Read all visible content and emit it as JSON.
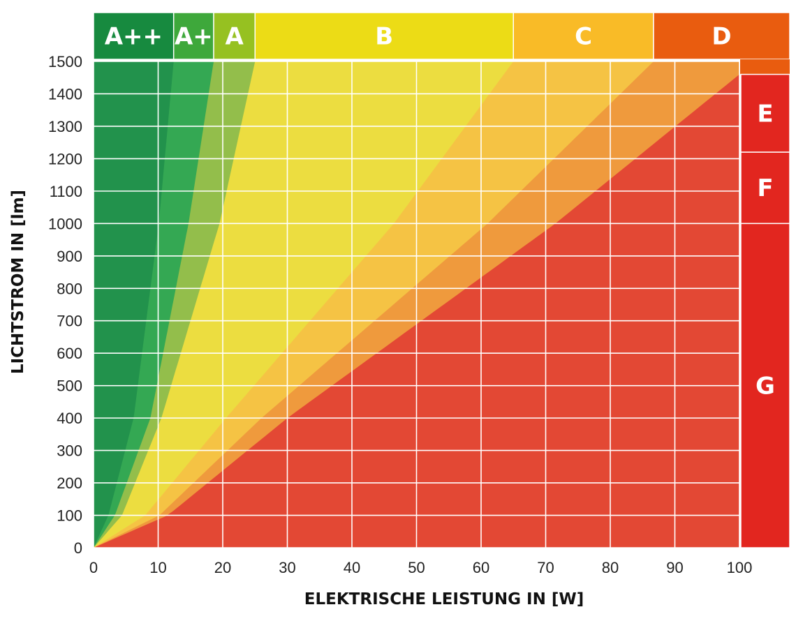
{
  "chart_data": {
    "type": "area",
    "xlabel": "ELEKTRISCHE LEISTUNG IN [W]",
    "ylabel": "LICHTSTROM IN [lm]",
    "xlim": [
      0,
      100
    ],
    "ylim": [
      0,
      1500
    ],
    "x_ticks": [
      "0",
      "10",
      "20",
      "30",
      "40",
      "50",
      "60",
      "70",
      "80",
      "90",
      "100"
    ],
    "y_ticks": [
      "0",
      "100",
      "200",
      "300",
      "400",
      "500",
      "600",
      "700",
      "800",
      "900",
      "1000",
      "1100",
      "1200",
      "1300",
      "1400",
      "1500"
    ],
    "grid": true,
    "top_bands": [
      {
        "label": "A++",
        "x_start": 0,
        "x_end": 12.4,
        "color": "#178a3f"
      },
      {
        "label": "A+",
        "x_start": 12.4,
        "x_end": 18.6,
        "color": "#3ea83b"
      },
      {
        "label": "A",
        "x_start": 18.6,
        "x_end": 25,
        "color": "#96c121"
      },
      {
        "label": "B",
        "x_start": 25,
        "x_end": 65,
        "color": "#ecdc16"
      },
      {
        "label": "C",
        "x_start": 65,
        "x_end": 86.7,
        "color": "#f9bb27"
      },
      {
        "label": "D",
        "x_start": 86.7,
        "x_end": 108,
        "color": "#e95c0f"
      }
    ],
    "right_bands": [
      {
        "label": "E",
        "y_start": 1220,
        "y_end": 1460,
        "color": "#e2261f"
      },
      {
        "label": "F",
        "y_start": 1000,
        "y_end": 1220,
        "color": "#e2261f"
      },
      {
        "label": "G",
        "y_start": 0,
        "y_end": 1000,
        "color": "#e2261f"
      }
    ],
    "regions": [
      {
        "label": "A++",
        "color": "#22924c",
        "boundary_W_at_lm": [
          [
            0,
            0
          ],
          [
            100,
            2.3
          ],
          [
            400,
            6.2
          ],
          [
            1000,
            10.1
          ],
          [
            1500,
            12.4
          ]
        ]
      },
      {
        "label": "A+",
        "color": "#34a853",
        "boundary_W_at_lm": [
          [
            0,
            0
          ],
          [
            100,
            3.3
          ],
          [
            400,
            8.8
          ],
          [
            1000,
            14.7
          ],
          [
            1500,
            18.6
          ]
        ]
      },
      {
        "label": "A",
        "color": "#93be4b",
        "boundary_W_at_lm": [
          [
            0,
            0
          ],
          [
            100,
            4.4
          ],
          [
            400,
            10.5
          ],
          [
            1000,
            19.5
          ],
          [
            1500,
            25
          ]
        ]
      },
      {
        "label": "B",
        "color": "#ecdd40",
        "boundary_W_at_lm": [
          [
            0,
            0
          ],
          [
            100,
            8
          ],
          [
            400,
            20.5
          ],
          [
            1000,
            46.5
          ],
          [
            1500,
            65
          ]
        ]
      },
      {
        "label": "C",
        "color": "#f5c344",
        "boundary_W_at_lm": [
          [
            0,
            0
          ],
          [
            100,
            10.2
          ],
          [
            400,
            26
          ],
          [
            1000,
            61
          ],
          [
            1500,
            86.7
          ]
        ]
      },
      {
        "label": "D",
        "color": "#ef9a3d",
        "boundary_W_at_lm": [
          [
            0,
            0
          ],
          [
            100,
            11.5
          ],
          [
            400,
            30
          ],
          [
            1000,
            71.5
          ],
          [
            1460,
            100
          ]
        ]
      },
      {
        "label": "E-G",
        "color": "#e34834"
      }
    ]
  }
}
